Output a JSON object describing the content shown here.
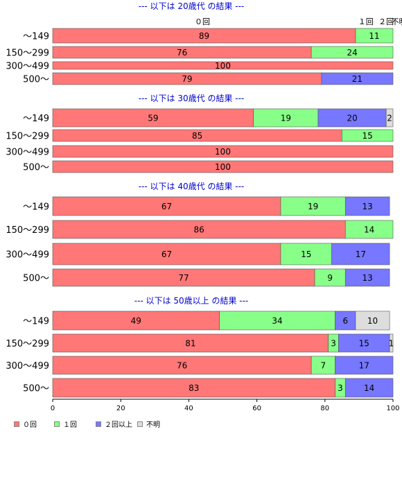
{
  "chart_data": {
    "type": "bar",
    "orientation": "horizontal",
    "stacked": true,
    "xlim": [
      0,
      100
    ],
    "x_ticks": [
      "0",
      "20",
      "40",
      "60",
      "80",
      "100"
    ],
    "legend_placement": "bottom-left",
    "series_names": [
      "０回",
      "１回",
      "２回以上",
      "不明"
    ],
    "series_colors": [
      "#ff7777",
      "#88ff88",
      "#7777ff",
      "#dddddd"
    ],
    "top_headers": [
      "０回",
      "１回",
      "２回",
      "不明"
    ],
    "groups": [
      {
        "title": "--- 以下は 20歳代 の結果 ---",
        "rows": [
          {
            "label": "～149",
            "values": [
              89,
              11,
              0,
              0
            ]
          },
          {
            "label": "150～299",
            "values": [
              76,
              24,
              0,
              0
            ]
          },
          {
            "label": "300～499",
            "values": [
              100,
              0,
              0,
              0
            ]
          },
          {
            "label": "500～",
            "values": [
              79,
              0,
              21,
              0
            ]
          }
        ]
      },
      {
        "title": "--- 以下は 30歳代 の結果 ---",
        "rows": [
          {
            "label": "～149",
            "values": [
              59,
              19,
              20,
              2
            ]
          },
          {
            "label": "150～299",
            "values": [
              85,
              15,
              0,
              0
            ]
          },
          {
            "label": "300～499",
            "values": [
              100,
              0,
              0,
              0
            ]
          },
          {
            "label": "500～",
            "values": [
              100,
              0,
              0,
              0
            ]
          }
        ]
      },
      {
        "title": "--- 以下は 40歳代 の結果 ---",
        "rows": [
          {
            "label": "～149",
            "values": [
              67,
              19,
              13,
              0
            ]
          },
          {
            "label": "150～299",
            "values": [
              86,
              14,
              0,
              0
            ]
          },
          {
            "label": "300～499",
            "values": [
              67,
              15,
              17,
              0
            ]
          },
          {
            "label": "500～",
            "values": [
              77,
              9,
              13,
              0
            ]
          }
        ]
      },
      {
        "title": "--- 以下は 50歳以上 の結果 ---",
        "rows": [
          {
            "label": "～149",
            "values": [
              49,
              34,
              6,
              10
            ]
          },
          {
            "label": "150～299",
            "values": [
              81,
              3,
              15,
              1
            ]
          },
          {
            "label": "300～499",
            "values": [
              76,
              7,
              17,
              0
            ]
          },
          {
            "label": "500～",
            "values": [
              83,
              3,
              14,
              0
            ]
          }
        ]
      }
    ]
  }
}
